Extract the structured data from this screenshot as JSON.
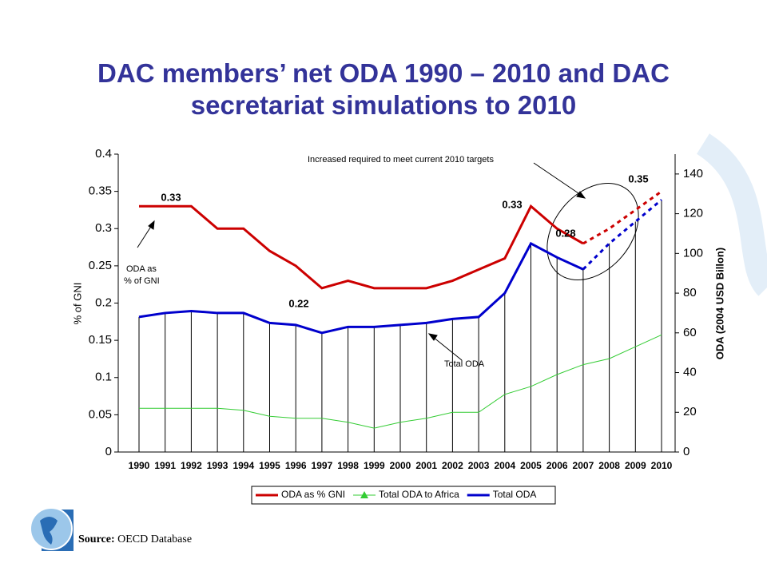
{
  "chart_data": {
    "type": "line",
    "title": "DAC members’ net ODA 1990 – 2010 and DAC secretariat simulations to 2010",
    "y_label": "% of GNI",
    "y2_label": "ODA (2004 USD Billon)",
    "categories": [
      "1990",
      "1991",
      "1992",
      "1993",
      "1994",
      "1995",
      "1996",
      "1997",
      "1998",
      "1999",
      "2000",
      "2001",
      "2002",
      "2003",
      "2004",
      "2005",
      "2006",
      "2007",
      "2008",
      "2009",
      "2010"
    ],
    "ylim": [
      0,
      0.4
    ],
    "yticks": [
      0,
      0.05,
      0.1,
      0.15,
      0.2,
      0.25,
      0.3,
      0.35,
      0.4
    ],
    "y2lim": [
      0,
      150
    ],
    "y2ticks": [
      0,
      20,
      40,
      60,
      80,
      100,
      120,
      140
    ],
    "series": [
      {
        "name": "ODA as % GNI",
        "color": "#cc0000",
        "axis": "y",
        "values": [
          0.33,
          0.33,
          0.33,
          0.3,
          0.3,
          0.27,
          0.25,
          0.22,
          0.23,
          0.22,
          0.22,
          0.22,
          0.23,
          0.245,
          0.26,
          0.33,
          0.3,
          0.28,
          null,
          null,
          null
        ]
      },
      {
        "name": "Total ODA to Africa",
        "color": "#33cc33",
        "axis": "y2",
        "marker": "triangle",
        "values": [
          22,
          22,
          22,
          22,
          21,
          18,
          17,
          17,
          15,
          12,
          15,
          17,
          20,
          20,
          29,
          33,
          39,
          44,
          47,
          53,
          59
        ]
      },
      {
        "name": "Total ODA",
        "color": "#0000cc",
        "axis": "y2",
        "values": [
          68,
          70,
          71,
          70,
          70,
          65,
          64,
          60,
          63,
          63,
          64,
          65,
          67,
          68,
          80,
          105,
          98,
          92,
          null,
          null,
          null
        ]
      },
      {
        "color": "#cc0000",
        "axis": "y",
        "dashed": true,
        "values": [
          null,
          null,
          null,
          null,
          null,
          null,
          null,
          null,
          null,
          null,
          null,
          null,
          null,
          null,
          null,
          null,
          null,
          0.28,
          0.3,
          0.325,
          0.35
        ]
      },
      {
        "color": "#0000cc",
        "axis": "y2",
        "dashed": true,
        "values": [
          null,
          null,
          null,
          null,
          null,
          null,
          null,
          null,
          null,
          null,
          null,
          null,
          null,
          null,
          null,
          null,
          null,
          92,
          105,
          116,
          127
        ]
      }
    ],
    "annotations": [
      "0.33",
      "0.22",
      "0.33",
      "0.28",
      "0.35",
      "Increased required to meet current 2010 targets",
      "ODA as",
      "% of GNI",
      "Total ODA"
    ],
    "source": {
      "label": "Source:",
      "text": "OECD Database"
    }
  }
}
